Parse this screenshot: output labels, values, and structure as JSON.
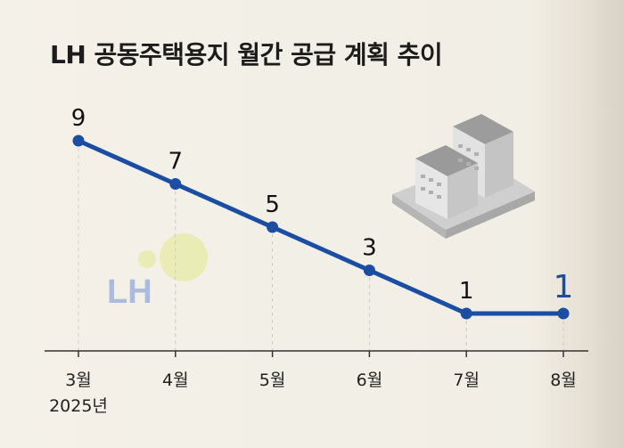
{
  "title": "LH 공동주택용지 월간 공급 계획 추이",
  "year_label": "2025년",
  "watermark_text": "LH",
  "colors": {
    "line": "#1b4ea3",
    "highlight": "#1a4fa0",
    "watermark_text": "#a9bce0",
    "watermark_blob": "#e6ecab"
  },
  "chart_data": {
    "type": "line",
    "title": "LH 공동주택용지 월간 공급 계획 추이",
    "categories": [
      "3월",
      "4월",
      "5월",
      "6월",
      "7월",
      "8월"
    ],
    "values": [
      9,
      7,
      5,
      3,
      1,
      1
    ],
    "data_labels": [
      "9",
      "7",
      "5",
      "3",
      "1",
      "1"
    ],
    "xlabel": "",
    "ylabel": "",
    "ylim": [
      1,
      9
    ],
    "grid": "vertical dashed guides",
    "legend": "none"
  }
}
